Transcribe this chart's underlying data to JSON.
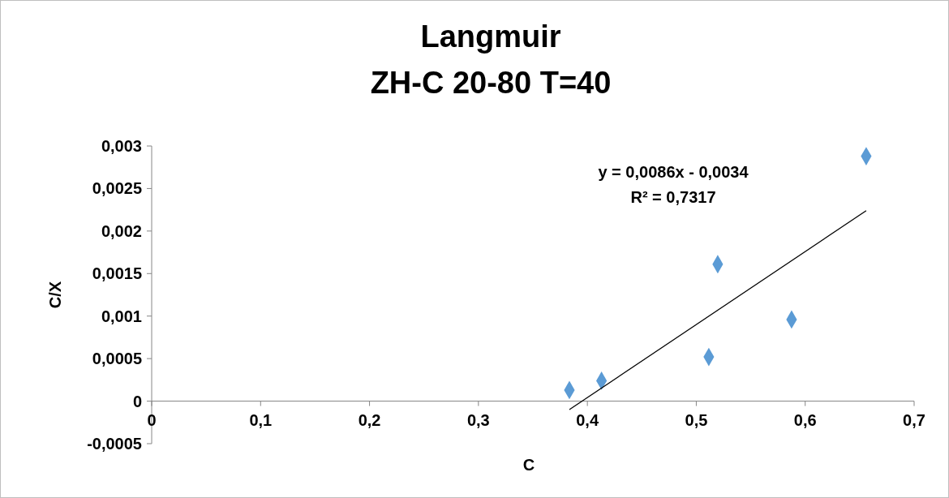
{
  "chart_data": {
    "type": "scatter",
    "title": "Langmuir",
    "subtitle": "ZH-C  20-80 T=40",
    "xlabel": "C",
    "ylabel": "C/X",
    "xlim": [
      0,
      0.7
    ],
    "xticks": [
      {
        "value": 0,
        "label": "0"
      },
      {
        "value": 0.1,
        "label": "0,1"
      },
      {
        "value": 0.2,
        "label": "0,2"
      },
      {
        "value": 0.3,
        "label": "0,3"
      },
      {
        "value": 0.4,
        "label": "0,4"
      },
      {
        "value": 0.5,
        "label": "0,5"
      },
      {
        "value": 0.6,
        "label": "0,6"
      },
      {
        "value": 0.7,
        "label": "0,7"
      }
    ],
    "ylim": [
      -0.0005,
      0.003
    ],
    "yticks": [
      {
        "value": -0.0005,
        "label": "-0,0005"
      },
      {
        "value": 0,
        "label": "0"
      },
      {
        "value": 0.0005,
        "label": "0,0005"
      },
      {
        "value": 0.001,
        "label": "0,001"
      },
      {
        "value": 0.0015,
        "label": "0,0015"
      },
      {
        "value": 0.002,
        "label": "0,002"
      },
      {
        "value": 0.0025,
        "label": "0,0025"
      },
      {
        "value": 0.003,
        "label": "0,003"
      }
    ],
    "grid": false,
    "series": [
      {
        "marker": "diamond",
        "color": "#5b9bd5",
        "x": [
          0.3835,
          0.413,
          0.5115,
          0.5197,
          0.5875,
          0.656
        ],
        "values": [
          0.00013,
          0.00024,
          0.00052,
          0.00161,
          0.00096,
          0.00288
        ]
      },
      {
        "type": "line",
        "marker": "none",
        "line_style": "solid",
        "color": "#000000",
        "x": [
          0.3835,
          0.656
        ],
        "values": [
          -0.0001,
          0.00224
        ]
      }
    ],
    "annotations": [
      "y = 0,0086x - 0,0034",
      "R² = 0,7317"
    ]
  }
}
